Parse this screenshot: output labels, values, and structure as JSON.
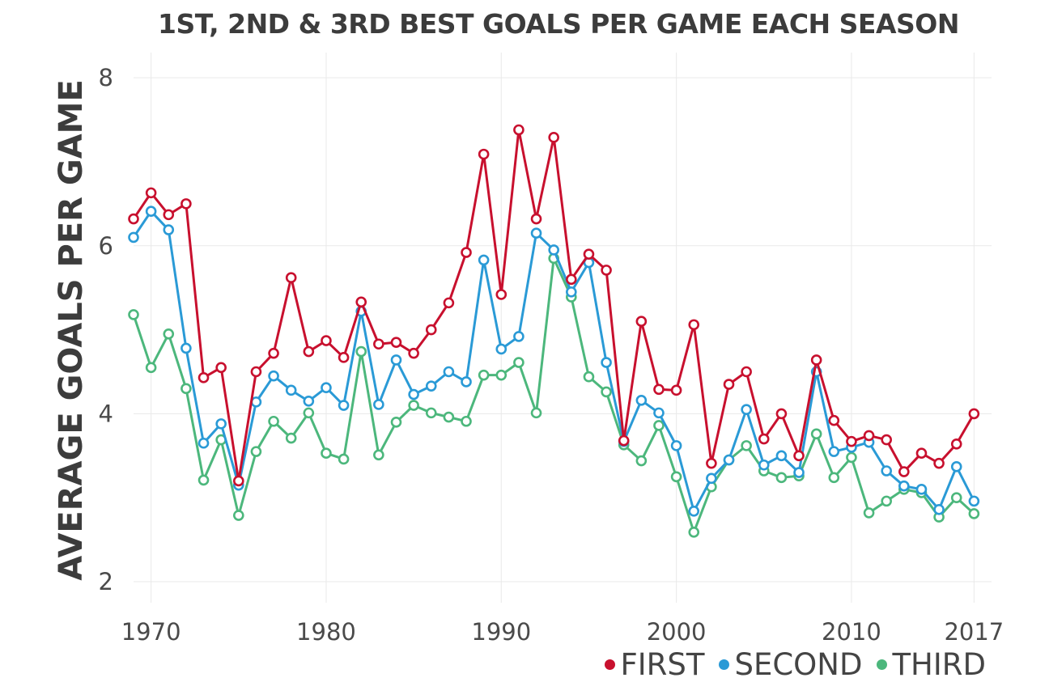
{
  "chart_data": {
    "type": "line",
    "title": "1ST, 2ND & 3RD BEST GOALS PER GAME EACH SEASON",
    "ylabel": "AVERAGE GOALS PER GAME",
    "xlabel": "",
    "xlim": [
      1969,
      2017
    ],
    "ylim": [
      2,
      8
    ],
    "x_ticks": [
      1970,
      1980,
      1990,
      2000,
      2010,
      2017
    ],
    "y_ticks": [
      2,
      4,
      6,
      8
    ],
    "grid": true,
    "legend_position": "bottom-right",
    "x": [
      1969,
      1970,
      1971,
      1972,
      1973,
      1974,
      1975,
      1976,
      1977,
      1978,
      1979,
      1980,
      1981,
      1982,
      1983,
      1984,
      1985,
      1986,
      1987,
      1988,
      1989,
      1990,
      1991,
      1992,
      1993,
      1994,
      1995,
      1996,
      1997,
      1998,
      1999,
      2000,
      2001,
      2002,
      2003,
      2004,
      2005,
      2006,
      2007,
      2008,
      2009,
      2010,
      2011,
      2012,
      2013,
      2014,
      2015,
      2016,
      2017
    ],
    "series": [
      {
        "name": "FIRST",
        "color": "#c8102e",
        "values": [
          6.32,
          6.63,
          6.37,
          6.5,
          4.43,
          4.55,
          3.2,
          4.5,
          4.72,
          5.62,
          4.74,
          4.87,
          4.67,
          5.33,
          4.83,
          4.85,
          4.72,
          5.0,
          5.32,
          5.92,
          7.09,
          5.42,
          7.38,
          6.32,
          7.29,
          5.6,
          5.9,
          5.71,
          3.68,
          5.1,
          4.29,
          4.28,
          5.06,
          3.41,
          4.35,
          4.5,
          3.7,
          4.0,
          3.5,
          4.64,
          3.92,
          3.67,
          3.74,
          3.69,
          3.31,
          3.53,
          3.41,
          3.64,
          4.0
        ]
      },
      {
        "name": "SECOND",
        "color": "#2a9ad6",
        "values": [
          6.1,
          6.41,
          6.19,
          4.78,
          3.65,
          3.88,
          3.15,
          4.14,
          4.45,
          4.28,
          4.15,
          4.31,
          4.1,
          5.22,
          4.11,
          4.64,
          4.23,
          4.33,
          4.5,
          4.38,
          5.83,
          4.77,
          4.92,
          6.15,
          5.95,
          5.45,
          5.8,
          4.61,
          3.67,
          4.16,
          4.01,
          3.62,
          2.84,
          3.23,
          3.45,
          4.05,
          3.39,
          3.5,
          3.3,
          4.5,
          3.55,
          3.6,
          3.66,
          3.32,
          3.14,
          3.1,
          2.86,
          3.37,
          2.96
        ]
      },
      {
        "name": "THIRD",
        "color": "#4cb77c",
        "values": [
          5.18,
          4.55,
          4.95,
          4.3,
          3.21,
          3.69,
          2.79,
          3.55,
          3.91,
          3.71,
          4.01,
          3.53,
          3.46,
          4.74,
          3.51,
          3.9,
          4.1,
          4.01,
          3.96,
          3.91,
          4.46,
          4.46,
          4.61,
          4.01,
          5.85,
          5.39,
          4.44,
          4.26,
          3.63,
          3.44,
          3.86,
          3.25,
          2.59,
          3.13,
          3.45,
          3.62,
          3.32,
          3.24,
          3.26,
          3.76,
          3.24,
          3.48,
          2.82,
          2.96,
          3.1,
          3.06,
          2.77,
          3.0,
          2.81
        ]
      }
    ]
  }
}
